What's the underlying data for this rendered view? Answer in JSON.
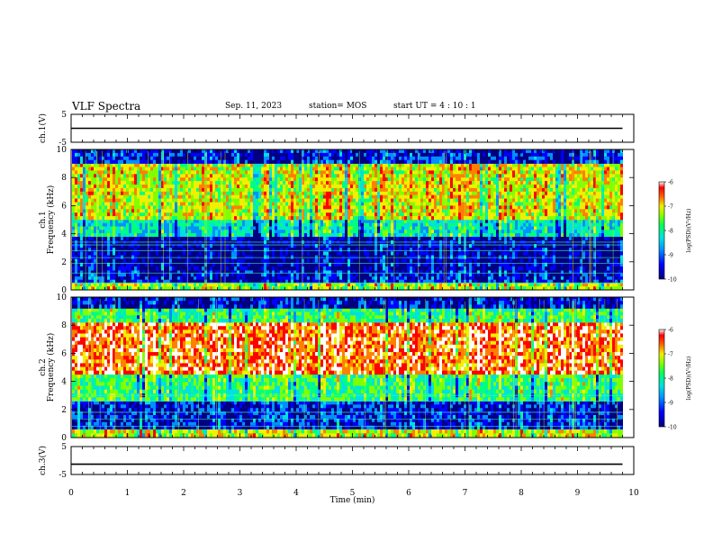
{
  "header": {
    "title": "VLF Spectra",
    "date": "Sep. 11, 2023",
    "station": "station= MOS",
    "start_ut": "start  UT =   4 : 10 : 1"
  },
  "chart_data": [
    {
      "id": "ch1-waveform",
      "type": "line",
      "ylabel": "ch.1(V)",
      "ylim": [
        -5,
        5
      ],
      "yticks": [
        "5",
        "-5"
      ],
      "xlim": [
        0,
        10
      ],
      "x": [
        0,
        9.8
      ],
      "values": [
        0,
        0
      ]
    },
    {
      "id": "ch1-spectrogram",
      "type": "heatmap",
      "ylabel_line1": "ch.1",
      "ylabel_line2": "Frequency  (kHz)",
      "ylim": [
        0,
        10
      ],
      "yticks": [
        "0",
        "2",
        "4",
        "6",
        "8",
        "10"
      ],
      "xlim": [
        0,
        10
      ],
      "data_end_min": 9.8,
      "colorbar": {
        "label": "log(PSD)(V²/Hz)",
        "ticks": [
          "-6",
          "-7",
          "-8",
          "-9",
          "-10"
        ],
        "range": [
          -10,
          -6
        ]
      },
      "intensity_profile": [
        {
          "freq": [
            0,
            0.5
          ],
          "level": -7.8
        },
        {
          "freq": [
            0.5,
            1.4
          ],
          "level": -9.6
        },
        {
          "freq": [
            1.4,
            3.8
          ],
          "level": -9.8
        },
        {
          "freq": [
            3.8,
            5.0
          ],
          "level": -8.6
        },
        {
          "freq": [
            5.0,
            9.0
          ],
          "level": -7.6
        },
        {
          "freq": [
            9.0,
            10
          ],
          "level": -9.6
        }
      ],
      "line_frequencies_khz": [
        0.5,
        1.2,
        1.9,
        2.3,
        2.8,
        3.2,
        3.4
      ]
    },
    {
      "id": "ch2-spectrogram",
      "type": "heatmap",
      "ylabel_line1": "ch.2",
      "ylabel_line2": "Frequency  (kHz)",
      "ylim": [
        0,
        10
      ],
      "yticks": [
        "0",
        "2",
        "4",
        "6",
        "8",
        "10"
      ],
      "xlim": [
        0,
        10
      ],
      "data_end_min": 9.8,
      "colorbar": {
        "label": "log(PSD)(V²/Hz)",
        "ticks": [
          "-6",
          "-7",
          "-8",
          "-9",
          "-10"
        ],
        "range": [
          -10,
          -6
        ]
      },
      "intensity_profile": [
        {
          "freq": [
            0,
            0.6
          ],
          "level": -7.6
        },
        {
          "freq": [
            0.6,
            2.6
          ],
          "level": -9.5
        },
        {
          "freq": [
            2.6,
            4.5
          ],
          "level": -8.2
        },
        {
          "freq": [
            4.5,
            8.2
          ],
          "level": -6.8
        },
        {
          "freq": [
            8.2,
            9.2
          ],
          "level": -8.2
        },
        {
          "freq": [
            9.2,
            10
          ],
          "level": -9.6
        }
      ],
      "line_frequencies_khz": [
        0.8,
        1.3,
        1.8,
        2.6,
        3.0
      ]
    },
    {
      "id": "ch3-waveform",
      "type": "line",
      "ylabel": "ch.3(V)",
      "ylim": [
        -5,
        5
      ],
      "yticks": [
        "5",
        "-5"
      ],
      "xlim": [
        0,
        10
      ],
      "x": [
        0,
        9.8
      ],
      "values": [
        -1.3,
        -1.3
      ]
    }
  ],
  "time_axis": {
    "label": "Time  (min)",
    "ticks": [
      "0",
      "1",
      "2",
      "3",
      "4",
      "5",
      "6",
      "7",
      "8",
      "9",
      "10"
    ]
  },
  "colormap": [
    "#000080",
    "#0000ff",
    "#0090ff",
    "#00e0e0",
    "#00ff80",
    "#80ff00",
    "#f0f000",
    "#ff8000",
    "#ff0000",
    "#ffffff"
  ]
}
